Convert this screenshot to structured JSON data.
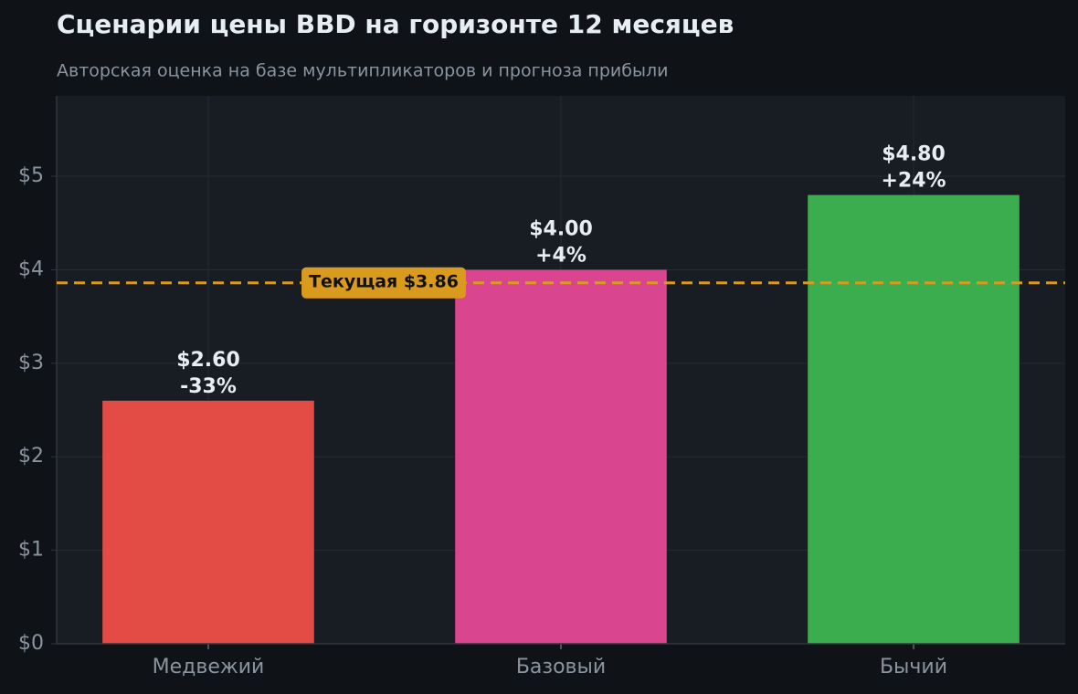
{
  "chart_data": {
    "type": "bar",
    "title": "Сценарии цены BBD на горизонте 12 месяцев",
    "subtitle": "Авторская оценка на базе мультипликаторов и прогноза прибыли",
    "categories": [
      "Медвежий",
      "Базовый",
      "Бычий"
    ],
    "values": [
      2.6,
      4.0,
      4.8
    ],
    "value_labels": [
      "$2.60",
      "$4.00",
      "$4.80"
    ],
    "change_labels": [
      "-33%",
      "+4%",
      "+24%"
    ],
    "colors": [
      "#e34c44",
      "#d9468f",
      "#3bad4e"
    ],
    "reference": {
      "value": 3.86,
      "label": "Текущая $3.86",
      "color": "#d99a1e"
    },
    "ylim": [
      0,
      5.86
    ],
    "yticks": [
      {
        "value": 0,
        "label": "$0"
      },
      {
        "value": 1,
        "label": "$1"
      },
      {
        "value": 2,
        "label": "$2"
      },
      {
        "value": 3,
        "label": "$3"
      },
      {
        "value": 4,
        "label": "$4"
      },
      {
        "value": 5,
        "label": "$5"
      }
    ],
    "grid": true
  }
}
